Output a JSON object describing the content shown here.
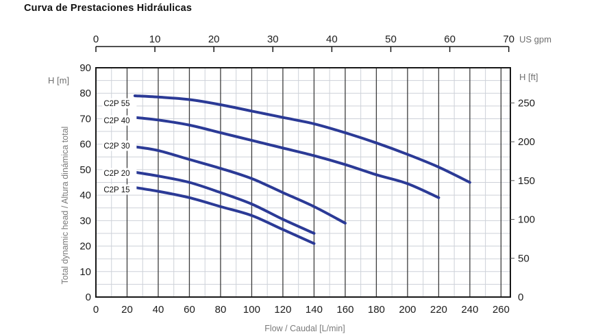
{
  "title": "Curva de Prestaciones Hidráulicas",
  "axes": {
    "top": {
      "unit": "US gpm",
      "ticks": [
        0,
        10,
        20,
        30,
        40,
        50,
        60,
        70
      ]
    },
    "bottom": {
      "title": "Flow / Caudal [L/min]",
      "ticks": [
        0,
        20,
        40,
        60,
        80,
        100,
        120,
        140,
        160,
        180,
        200,
        220,
        240,
        260
      ]
    },
    "left": {
      "unit": "H [m]",
      "title": "Total dynamic head / Altura dinámica total",
      "ticks": [
        90,
        80,
        70,
        60,
        50,
        40,
        30,
        20,
        10,
        0
      ]
    },
    "right": {
      "unit": "H [ft]",
      "ticks": [
        250,
        200,
        150,
        100,
        50,
        0
      ]
    }
  },
  "chart_data": {
    "type": "line",
    "title": "Curva de Prestaciones Hidráulicas",
    "xlabel": "Flow / Caudal [L/min]",
    "ylabel": "Total dynamic head / Altura dinámica total",
    "x2label": "US gpm",
    "y2label": "H [ft]",
    "xlim": [
      0,
      266
    ],
    "ylim": [
      0,
      90
    ],
    "x2lim": [
      0,
      70
    ],
    "y2lim": [
      0,
      250
    ],
    "gpm_per_lmin": 0.264172,
    "ft_per_m": 3.28084,
    "grid": {
      "x_major_step": 20,
      "x_minor_step": 10,
      "y_step": 5,
      "on": true
    },
    "line_color": "#2b3a96",
    "major_grid_color": "#3c3c3c",
    "minor_grid_color": "#cdd1d8",
    "border_color": "#161616",
    "series": [
      {
        "name": "C2P 55",
        "label_pos": [
          5,
          76.0
        ],
        "points": [
          [
            25,
            79
          ],
          [
            40,
            78.5
          ],
          [
            60,
            77.5
          ],
          [
            80,
            75.5
          ],
          [
            100,
            73
          ],
          [
            120,
            70.5
          ],
          [
            140,
            68
          ],
          [
            160,
            64.5
          ],
          [
            180,
            60.5
          ],
          [
            200,
            56
          ],
          [
            220,
            51
          ],
          [
            240,
            45
          ]
        ]
      },
      {
        "name": "C2P 40",
        "label_pos": [
          5,
          69.3
        ],
        "points": [
          [
            25,
            70.5
          ],
          [
            40,
            69.5
          ],
          [
            60,
            67.5
          ],
          [
            80,
            64.5
          ],
          [
            100,
            61.5
          ],
          [
            120,
            58.5
          ],
          [
            140,
            55.5
          ],
          [
            160,
            52
          ],
          [
            180,
            48
          ],
          [
            200,
            44.5
          ],
          [
            220,
            39
          ]
        ]
      },
      {
        "name": "C2P 30",
        "label_pos": [
          5,
          59.4
        ],
        "points": [
          [
            25,
            59
          ],
          [
            40,
            57.5
          ],
          [
            60,
            54
          ],
          [
            80,
            50.5
          ],
          [
            100,
            46.5
          ],
          [
            120,
            41
          ],
          [
            140,
            35.5
          ],
          [
            160,
            29
          ]
        ]
      },
      {
        "name": "C2P 20",
        "label_pos": [
          5,
          48.6
        ],
        "points": [
          [
            25,
            49
          ],
          [
            40,
            47.5
          ],
          [
            60,
            45
          ],
          [
            80,
            41
          ],
          [
            100,
            36.5
          ],
          [
            120,
            30.5
          ],
          [
            140,
            25
          ]
        ]
      },
      {
        "name": "C2P 15",
        "label_pos": [
          5,
          42.2
        ],
        "points": [
          [
            25,
            43
          ],
          [
            40,
            41.5
          ],
          [
            60,
            39
          ],
          [
            80,
            35.5
          ],
          [
            100,
            32
          ],
          [
            120,
            26.5
          ],
          [
            140,
            21
          ]
        ]
      }
    ]
  }
}
